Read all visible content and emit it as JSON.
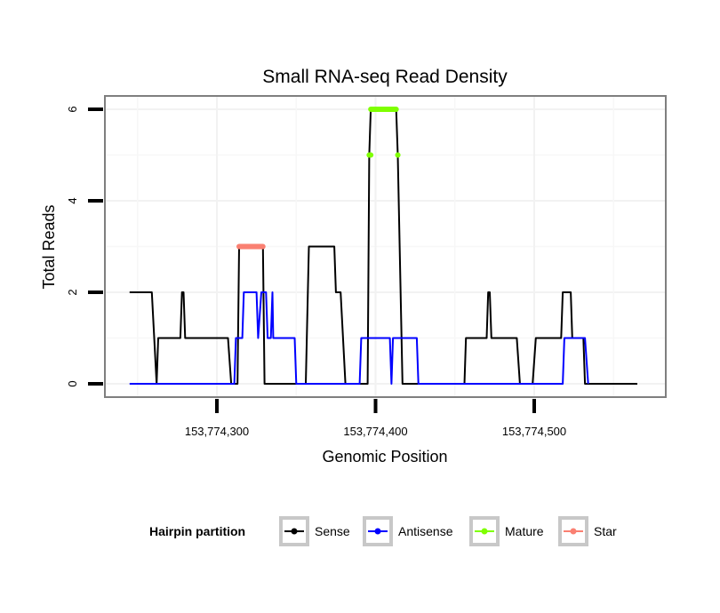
{
  "chart_data": {
    "type": "line",
    "title": "Small RNA-seq Read Density",
    "xlabel": "Genomic Position",
    "ylabel": "Total Reads",
    "x_offset": 153774000,
    "xlim": [
      153774230,
      153774570
    ],
    "ylim": [
      -0.3,
      6.3
    ],
    "x_ticks": [
      153774300,
      153774400,
      153774500
    ],
    "x_tick_labels": [
      "153,774,300",
      "153,774,400",
      "153,774,500"
    ],
    "y_ticks": [
      0,
      2,
      4,
      6
    ],
    "y_tick_labels": [
      "0",
      "2",
      "4",
      "6"
    ],
    "grid": true,
    "legend": {
      "title": "Hairpin partition",
      "position": "bottom",
      "entries": [
        {
          "label": "Sense",
          "color": "#000000"
        },
        {
          "label": "Antisense",
          "color": "#0000FF"
        },
        {
          "label": "Mature",
          "color": "#7FFF00"
        },
        {
          "label": "Star",
          "color": "#FA8072"
        }
      ]
    },
    "series": [
      {
        "name": "Sense",
        "color": "#000000",
        "x": [
          153774245,
          153774259,
          153774262,
          153774263,
          153774277,
          153774278,
          153774279,
          153774280,
          153774307,
          153774309,
          153774313,
          153774314,
          153774329,
          153774330,
          153774356,
          153774358,
          153774374,
          153774375,
          153774378,
          153774381,
          153774395,
          153774396,
          153774397,
          153774413,
          153774414,
          153774417,
          153774456,
          153774457,
          153774470,
          153774471,
          153774472,
          153774473,
          153774489,
          153774491,
          153774499,
          153774501,
          153774517,
          153774518,
          153774523,
          153774524,
          153774531,
          153774532,
          153774565
        ],
        "y": [
          2,
          2,
          0,
          1,
          1,
          2,
          2,
          1,
          1,
          0,
          0,
          3,
          3,
          0,
          0,
          3,
          3,
          2,
          2,
          0,
          0,
          5,
          6,
          6,
          5,
          0,
          0,
          1,
          1,
          2,
          2,
          1,
          1,
          0,
          0,
          1,
          1,
          2,
          2,
          1,
          1,
          0,
          0
        ]
      },
      {
        "name": "Antisense",
        "color": "#0000FF",
        "x": [
          153774245,
          153774311,
          153774312,
          153774316,
          153774317,
          153774325,
          153774326,
          153774328,
          153774331,
          153774332,
          153774334,
          153774335,
          153774335.5,
          153774336,
          153774349,
          153774350,
          153774390,
          153774391,
          153774409,
          153774410,
          153774411,
          153774426,
          153774427,
          153774518,
          153774519,
          153774532,
          153774534
        ],
        "y": [
          0,
          0,
          1,
          1,
          2,
          2,
          1,
          2,
          2,
          1,
          1,
          2,
          1,
          1,
          1,
          0,
          0,
          1,
          1,
          0,
          1,
          1,
          0,
          0,
          1,
          1,
          0
        ]
      },
      {
        "name": "Mature",
        "color": "#7FFF00",
        "points": [
          {
            "x": [
              153774396,
              153774397
            ],
            "y": 5
          },
          {
            "x": [
              153774397,
              153774413
            ],
            "y": 6
          },
          {
            "x": [
              153774414,
              153774414
            ],
            "y": 5
          }
        ]
      },
      {
        "name": "Star",
        "color": "#FA8072",
        "points": [
          {
            "x": [
              153774314,
              153774329
            ],
            "y": 3
          }
        ]
      }
    ]
  }
}
